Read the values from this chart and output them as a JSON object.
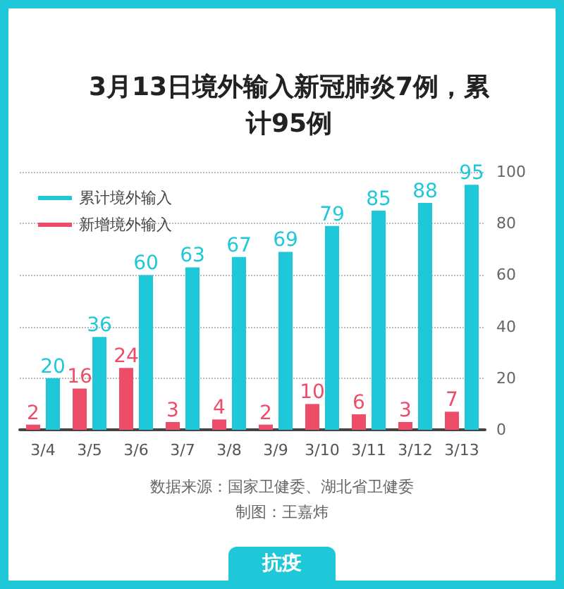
{
  "chart_data": {
    "type": "bar",
    "title": "3月13日境外输入新冠肺炎7例，累计95例",
    "categories": [
      "3/4",
      "3/5",
      "3/6",
      "3/7",
      "3/8",
      "3/9",
      "3/10",
      "3/11",
      "3/12",
      "3/13"
    ],
    "series": [
      {
        "name": "新增境外输入",
        "color": "#ee4d6a",
        "values": [
          2,
          16,
          24,
          3,
          4,
          2,
          10,
          6,
          3,
          7
        ]
      },
      {
        "name": "累计境外输入",
        "color": "#1ec8d8",
        "values": [
          20,
          36,
          60,
          63,
          67,
          69,
          79,
          85,
          88,
          95
        ]
      }
    ],
    "ylim": [
      0,
      100
    ],
    "yticks": [
      0,
      20,
      40,
      60,
      80,
      100
    ],
    "grid": "y",
    "legend": "top left",
    "data_labels": true,
    "annotations": [
      "数据来源：国家卫健委、湖北省卫健委",
      "制图：王嘉炜",
      "抗疫"
    ]
  }
}
